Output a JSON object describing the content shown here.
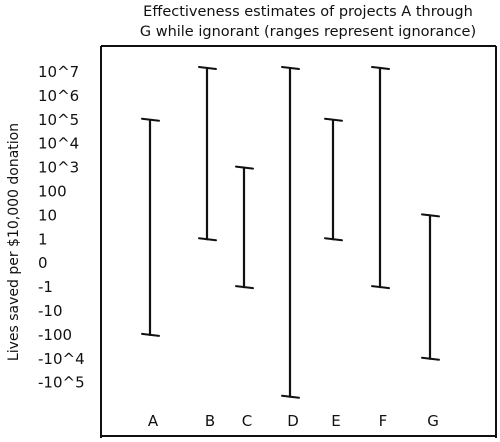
{
  "chart_data": {
    "type": "range",
    "title_lines": [
      "Effectiveness estimates of projects A through",
      "G while ignorant (ranges represent ignorance)"
    ],
    "xlabel": "",
    "ylabel": "Lives saved per $10,000 donation",
    "y_ticks": [
      "10^7",
      "10^6",
      "10^5",
      "10^4",
      "10^3",
      "100",
      "10",
      "1",
      "0",
      "-1",
      "-10",
      "-100",
      "-10^4",
      "-10^5"
    ],
    "categories": [
      "A",
      "B",
      "C",
      "D",
      "E",
      "F",
      "G"
    ],
    "ranges": [
      {
        "category": "A",
        "low": -100,
        "high": "10^5"
      },
      {
        "category": "B",
        "low": 1,
        "high": "10^7"
      },
      {
        "category": "C",
        "low": -1,
        "high": "10^3"
      },
      {
        "category": "D",
        "low": "-10^5",
        "high": "10^7"
      },
      {
        "category": "E",
        "low": 1,
        "high": "10^5"
      },
      {
        "category": "F",
        "low": -1,
        "high": "10^7"
      },
      {
        "category": "G",
        "low": "-10^4",
        "high": 10
      }
    ]
  }
}
